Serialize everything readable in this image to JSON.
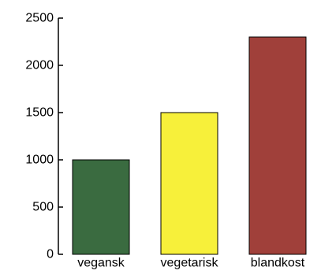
{
  "chart_data": {
    "type": "bar",
    "title": "",
    "xlabel": "",
    "ylabel": "",
    "categories": [
      "vegansk",
      "vegetarisk",
      "blandkost"
    ],
    "values": [
      1000,
      1500,
      2300
    ],
    "ylim": [
      0,
      2500
    ],
    "yticks": [
      0,
      500,
      1000,
      1500,
      2000,
      2500
    ],
    "ytick_labels": [
      "0",
      "500",
      "1000",
      "1500",
      "2000",
      "2500"
    ],
    "colors": [
      "#3a6b40",
      "#f7f03a",
      "#a0403a"
    ],
    "grid": false,
    "legend": "none"
  }
}
